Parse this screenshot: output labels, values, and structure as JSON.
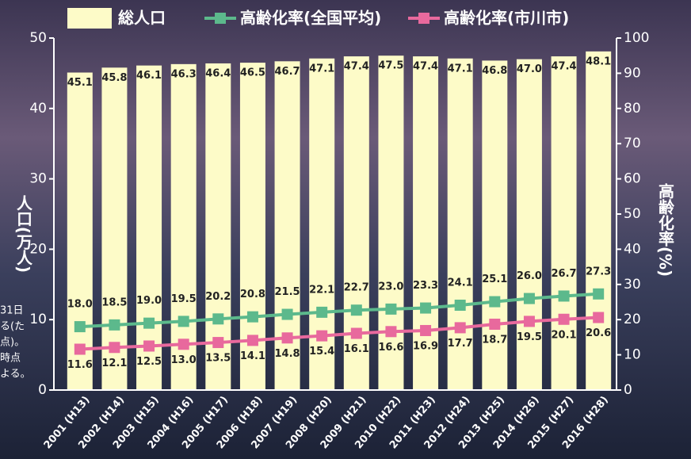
{
  "chart_data": {
    "type": "bar-line",
    "categories": [
      "2001 (H13)",
      "2002 (H14)",
      "2003 (H15)",
      "2004 (H16)",
      "2005 (H17)",
      "2006 (H18)",
      "2007 (H19)",
      "2008 (H20)",
      "2009 (H21)",
      "2010 (H22)",
      "2011 (H23)",
      "2012 (H24)",
      "2013 (H25)",
      "2014 (H26)",
      "2015 (H27)",
      "2016 (H28)"
    ],
    "series": [
      {
        "name": "総人口",
        "type": "bar",
        "color": "#fdfbc8",
        "values": [
          45.1,
          45.8,
          46.1,
          46.3,
          46.4,
          46.5,
          46.7,
          47.1,
          47.4,
          47.5,
          47.4,
          47.1,
          46.8,
          47.0,
          47.4,
          48.1
        ],
        "value_labels": [
          "45.1",
          "45.8",
          "46.1",
          "46.3",
          "46.4",
          "46.5",
          "46.7",
          "47.1",
          "47.4",
          "47.5",
          "47.4",
          "47.1",
          "46.8",
          "47.0",
          "47.4",
          "48.1"
        ]
      },
      {
        "name": "高齢化率(全国平均)",
        "type": "line",
        "axis": "y2",
        "color": "#5cb98c",
        "values": [
          18.0,
          18.5,
          19.0,
          19.5,
          20.2,
          20.8,
          21.5,
          22.1,
          22.7,
          23.0,
          23.3,
          24.1,
          25.1,
          26.0,
          26.7,
          27.3
        ],
        "value_labels": [
          "18.0",
          "18.5",
          "19.0",
          "19.5",
          "20.2",
          "20.8",
          "21.5",
          "22.1",
          "22.7",
          "23.0",
          "23.3",
          "24.1",
          "25.1",
          "26.0",
          "26.7",
          "27.3"
        ]
      },
      {
        "name": "高齢化率(市川市)",
        "type": "line",
        "axis": "y2",
        "color": "#e8699d",
        "values": [
          11.6,
          12.1,
          12.5,
          13.0,
          13.5,
          14.1,
          14.8,
          15.4,
          16.1,
          16.6,
          16.9,
          17.7,
          18.7,
          19.5,
          20.1,
          20.6
        ],
        "value_labels": [
          "11.6",
          "12.1",
          "12.5",
          "13.0",
          "13.5",
          "14.1",
          "14.8",
          "15.4",
          "16.1",
          "16.6",
          "16.9",
          "17.7",
          "18.7",
          "19.5",
          "20.1",
          "20.6"
        ]
      }
    ],
    "y_label": "人口(万人)",
    "y2_label": "高齢化率(%)",
    "ylim": [
      0,
      50
    ],
    "yticks": [
      0,
      10,
      20,
      30,
      40,
      50
    ],
    "y2lim": [
      0,
      100
    ],
    "y2ticks": [
      0,
      10,
      20,
      30,
      40,
      50,
      60,
      70,
      80,
      90,
      100
    ],
    "side_note": [
      "31日",
      "る(た",
      "点)。",
      "時点",
      "よる。"
    ]
  }
}
